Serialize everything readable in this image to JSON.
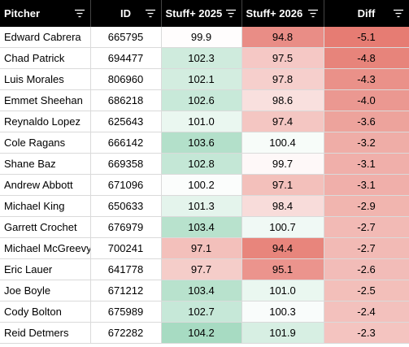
{
  "headers": {
    "pitcher": "Pitcher",
    "id": "ID",
    "stuff2025": "Stuff+ 2025",
    "stuff2026": "Stuff+ 2026",
    "diff": "Diff"
  },
  "colors": {
    "header_bg": "#000000",
    "header_text": "#ffffff",
    "scale_green": "#57bb8a",
    "scale_white": "#ffffff",
    "scale_red": "#e67c73"
  },
  "rows": [
    {
      "name": "Edward Cabrera",
      "id": "665795",
      "s2025": "99.9",
      "s2026": "94.8",
      "diff": "-5.1"
    },
    {
      "name": "Chad Patrick",
      "id": "694477",
      "s2025": "102.3",
      "s2026": "97.5",
      "diff": "-4.8"
    },
    {
      "name": "Luis Morales",
      "id": "806960",
      "s2025": "102.1",
      "s2026": "97.8",
      "diff": "-4.3"
    },
    {
      "name": "Emmet Sheehan",
      "id": "686218",
      "s2025": "102.6",
      "s2026": "98.6",
      "diff": "-4.0"
    },
    {
      "name": "Reynaldo Lopez",
      "id": "625643",
      "s2025": "101.0",
      "s2026": "97.4",
      "diff": "-3.6"
    },
    {
      "name": "Cole Ragans",
      "id": "666142",
      "s2025": "103.6",
      "s2026": "100.4",
      "diff": "-3.2"
    },
    {
      "name": "Shane Baz",
      "id": "669358",
      "s2025": "102.8",
      "s2026": "99.7",
      "diff": "-3.1"
    },
    {
      "name": "Andrew Abbott",
      "id": "671096",
      "s2025": "100.2",
      "s2026": "97.1",
      "diff": "-3.1"
    },
    {
      "name": "Michael King",
      "id": "650633",
      "s2025": "101.3",
      "s2026": "98.4",
      "diff": "-2.9"
    },
    {
      "name": "Garrett Crochet",
      "id": "676979",
      "s2025": "103.4",
      "s2026": "100.7",
      "diff": "-2.7"
    },
    {
      "name": "Michael McGreevy",
      "id": "700241",
      "s2025": "97.1",
      "s2026": "94.4",
      "diff": "-2.7"
    },
    {
      "name": "Eric Lauer",
      "id": "641778",
      "s2025": "97.7",
      "s2026": "95.1",
      "diff": "-2.6"
    },
    {
      "name": "Joe Boyle",
      "id": "671212",
      "s2025": "103.4",
      "s2026": "101.0",
      "diff": "-2.5"
    },
    {
      "name": "Cody Bolton",
      "id": "675989",
      "s2025": "102.7",
      "s2026": "100.3",
      "diff": "-2.4"
    },
    {
      "name": "Reid Detmers",
      "id": "672282",
      "s2025": "104.2",
      "s2026": "101.9",
      "diff": "-2.3"
    }
  ]
}
